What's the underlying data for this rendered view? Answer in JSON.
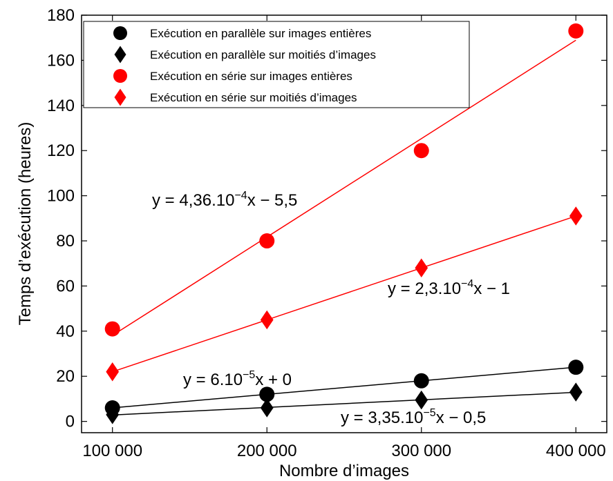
{
  "chart_data": {
    "type": "scatter",
    "xlabel": "Nombre d’images",
    "ylabel": "Temps d’exécution (heures)",
    "xlim": [
      80000,
      420000
    ],
    "ylim": [
      -5,
      180
    ],
    "x_ticks": [
      100000,
      200000,
      300000,
      400000
    ],
    "x_tick_labels": [
      "100 000",
      "200 000",
      "300 000",
      "400 000"
    ],
    "y_ticks": [
      0,
      20,
      40,
      60,
      80,
      100,
      120,
      140,
      160,
      180
    ],
    "y_tick_labels": [
      "0",
      "20",
      "40",
      "60",
      "80",
      "100",
      "120",
      "140",
      "160",
      "180"
    ],
    "grid": false,
    "legend_position": "top-left",
    "series": [
      {
        "name": "Exécution en parallèle sur images entières",
        "marker": "circle",
        "color": "#000000",
        "x": [
          100000,
          200000,
          300000,
          400000
        ],
        "y": [
          6,
          12,
          18,
          24
        ],
        "fit": {
          "slope": 6e-05,
          "intercept": 0
        }
      },
      {
        "name": "Exécution en parallèle sur moitiés d’images",
        "marker": "diamond",
        "color": "#000000",
        "x": [
          100000,
          200000,
          300000,
          400000
        ],
        "y": [
          3,
          6,
          9.5,
          13
        ],
        "fit": {
          "slope": 3.35e-05,
          "intercept": -0.5
        }
      },
      {
        "name": "Exécution en série sur images entières",
        "marker": "circle",
        "color": "#ff0000",
        "x": [
          100000,
          200000,
          300000,
          400000
        ],
        "y": [
          41,
          80,
          120,
          173
        ],
        "fit": {
          "slope": 0.000436,
          "intercept": -5.5
        }
      },
      {
        "name": "Exécution en série sur moitiés d’images",
        "marker": "diamond",
        "color": "#ff0000",
        "x": [
          100000,
          200000,
          300000,
          400000
        ],
        "y": [
          22,
          45,
          68,
          91
        ],
        "fit": {
          "slope": 0.00023,
          "intercept": -1
        }
      }
    ],
    "annotations": [
      {
        "pre": "y = 4,36.10",
        "sup": "−4",
        "post": "x − 5,5"
      },
      {
        "pre": "y = 2,3.10",
        "sup": "−4",
        "post": "x − 1"
      },
      {
        "pre": "y = 6.10",
        "sup": "−5",
        "post": "x + 0"
      },
      {
        "pre": "y = 3,35.10",
        "sup": "−5",
        "post": "x − 0,5"
      }
    ]
  }
}
